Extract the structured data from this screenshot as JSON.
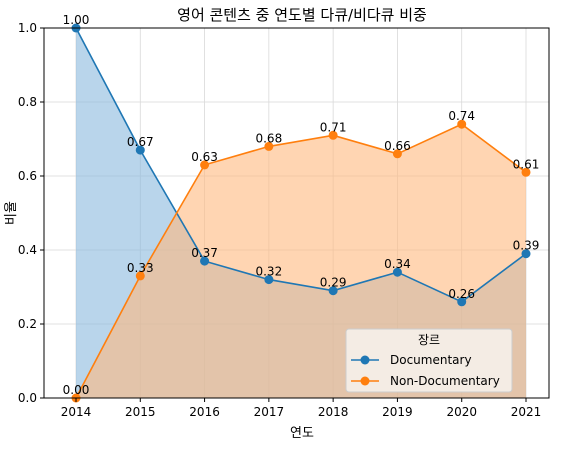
{
  "chart_data": {
    "type": "area",
    "title": "영어 콘텐츠 중 연도별 다큐/비다큐 비중",
    "xlabel": "연도",
    "ylabel": "비율",
    "x": [
      "2014",
      "2015",
      "2016",
      "2017",
      "2018",
      "2019",
      "2020",
      "2021"
    ],
    "ylim": [
      0,
      1.0
    ],
    "yticks": [
      "0.0",
      "0.2",
      "0.4",
      "0.6",
      "0.8",
      "1.0"
    ],
    "grid": true,
    "legend": {
      "title": "장르",
      "placement": "lower-right"
    },
    "series": [
      {
        "name": "Documentary",
        "color": "#1f77b4",
        "fill": "#8ab9dd",
        "values": [
          1.0,
          0.67,
          0.37,
          0.32,
          0.29,
          0.34,
          0.26,
          0.39
        ],
        "labels": [
          "1.00",
          "0.67",
          "0.37",
          "0.32",
          "0.29",
          "0.34",
          "0.26",
          "0.39"
        ]
      },
      {
        "name": "Non-Documentary",
        "color": "#ff7f0e",
        "fill": "#ffb97e",
        "values": [
          0.0,
          0.33,
          0.63,
          0.68,
          0.71,
          0.66,
          0.74,
          0.61
        ],
        "labels": [
          "0.00",
          "0.33",
          "0.63",
          "0.68",
          "0.71",
          "0.66",
          "0.74",
          "0.61"
        ]
      }
    ]
  }
}
